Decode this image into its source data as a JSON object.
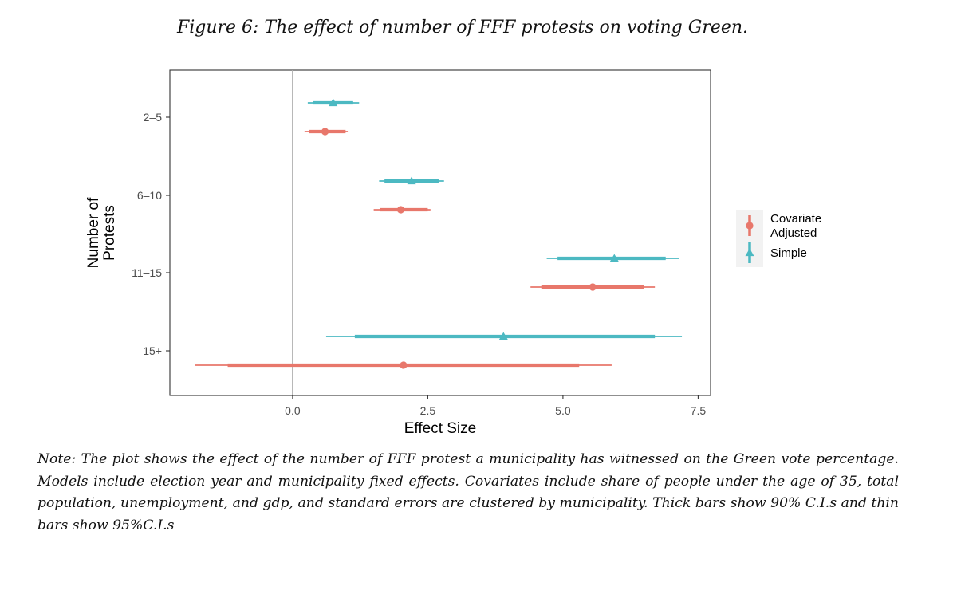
{
  "caption": "Figure 6: The effect of number of FFF protests on voting Green.",
  "note": "Note: The plot shows the effect of the number of FFF protest a municipality has witnessed on the Green vote percentage. Models include election year and municipality fixed effects. Covariates include share of people under the age of 35, total population, unemployment, and gdp, and standard errors are clustered by municipality. Thick bars show 90% C.I.s and thin bars show 95%C.I.s",
  "chart_data": {
    "type": "scatter",
    "xlabel": "Effect Size",
    "ylabel": "Number of Protests",
    "ylabel_lines": [
      "Number of",
      "Protests"
    ],
    "xlim": [
      -2.27,
      7.73
    ],
    "xticks": [
      0.0,
      2.5,
      5.0,
      7.5
    ],
    "xtick_labels": [
      "0.0",
      "2.5",
      "5.0",
      "7.5"
    ],
    "categories": [
      "2–5",
      "6–10",
      "11–15",
      "15+"
    ],
    "reference_line_x": 0,
    "grid": false,
    "legend_position": "right",
    "series": [
      {
        "name": "Covariate Adjusted",
        "legend_lines": [
          "Covariate",
          "Adjusted"
        ],
        "color": "#E8776B",
        "marker": "circle",
        "estimates": [
          0.6,
          2.0,
          5.55,
          2.05
        ],
        "ci90": [
          [
            0.3,
            0.98
          ],
          [
            1.62,
            2.5
          ],
          [
            4.6,
            6.5
          ],
          [
            -1.2,
            5.3
          ]
        ],
        "ci95": [
          [
            0.22,
            1.02
          ],
          [
            1.5,
            2.55
          ],
          [
            4.4,
            6.7
          ],
          [
            -1.8,
            5.9
          ]
        ]
      },
      {
        "name": "Simple",
        "legend_lines": [
          "Simple"
        ],
        "color": "#4CB9C2",
        "marker": "triangle",
        "estimates": [
          0.75,
          2.2,
          5.95,
          3.9
        ],
        "ci90": [
          [
            0.38,
            1.12
          ],
          [
            1.7,
            2.7
          ],
          [
            4.9,
            6.9
          ],
          [
            1.15,
            6.7
          ]
        ],
        "ci95": [
          [
            0.28,
            1.23
          ],
          [
            1.6,
            2.8
          ],
          [
            4.7,
            7.15
          ],
          [
            0.62,
            7.2
          ]
        ]
      }
    ]
  }
}
